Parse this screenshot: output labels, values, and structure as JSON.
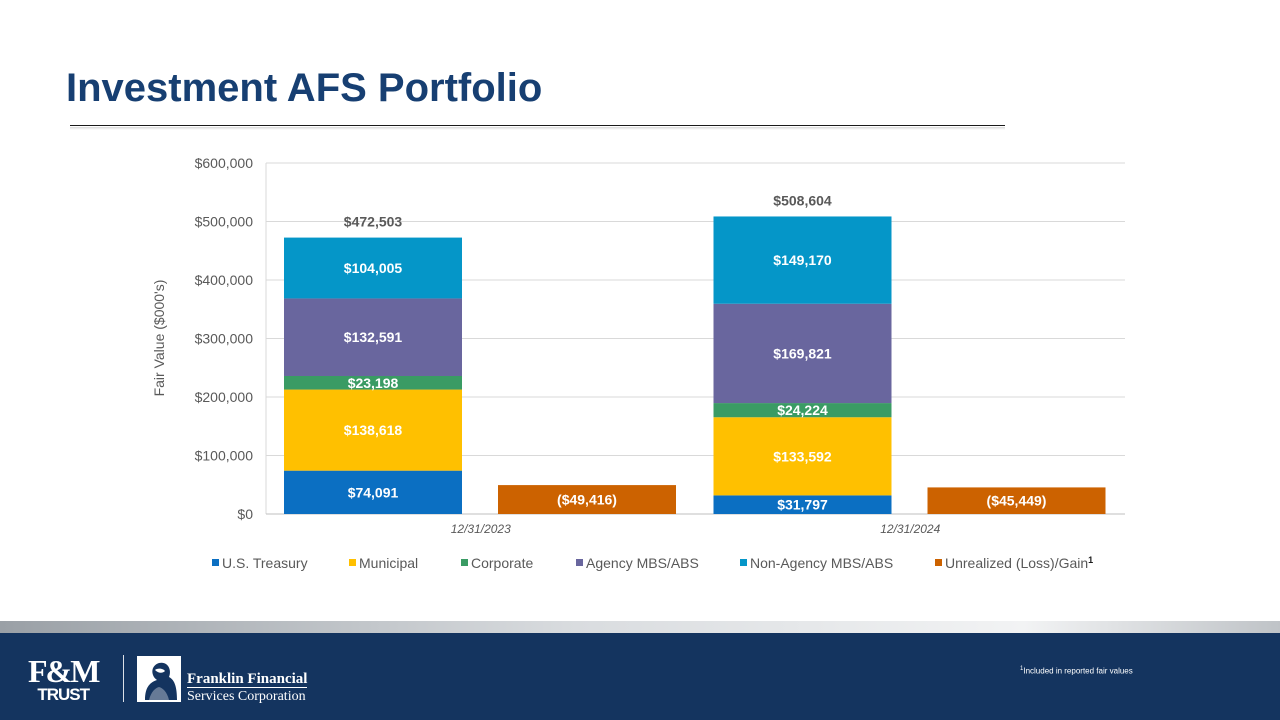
{
  "page": {
    "title": "Investment AFS Portfolio",
    "footnote_marker": "1",
    "footnote_text": "Included in reported fair values"
  },
  "logos": {
    "fm_mark": "F&M",
    "fm_sub": "TRUST",
    "ffsc_line1": "Franklin Financial",
    "ffsc_line2": "Services Corporation"
  },
  "colors": {
    "title": "#173f72",
    "footer": "#14345f",
    "us_treasury": "#0b6fc2",
    "municipal": "#ffc000",
    "corporate": "#3a9b64",
    "agency": "#69669e",
    "non_agency": "#0596c8",
    "unrealized": "#cc6200",
    "grid": "#d9d9d9",
    "axis_text": "#595959"
  },
  "chart_data": {
    "type": "bar",
    "stacked": true,
    "title": "",
    "xlabel": "",
    "ylabel": "Fair Value ($000's)",
    "ylim": [
      0,
      600000
    ],
    "yticks": [
      0,
      100000,
      200000,
      300000,
      400000,
      500000,
      600000
    ],
    "ytick_labels": [
      "$0",
      "$100,000",
      "$200,000",
      "$300,000",
      "$400,000",
      "$500,000",
      "$600,000"
    ],
    "categories": [
      "12/31/2023",
      "12/31/2024"
    ],
    "grid": true,
    "legend_position": "bottom",
    "series": [
      {
        "name": "U.S. Treasury",
        "color_key": "us_treasury",
        "stack": "portfolio",
        "values": [
          74091,
          31797
        ],
        "labels": [
          "$74,091",
          "$31,797"
        ]
      },
      {
        "name": "Municipal",
        "color_key": "municipal",
        "stack": "portfolio",
        "values": [
          138618,
          133592
        ],
        "labels": [
          "$138,618",
          "$133,592"
        ]
      },
      {
        "name": "Corporate",
        "color_key": "corporate",
        "stack": "portfolio",
        "values": [
          23198,
          24224
        ],
        "labels": [
          "$23,198",
          "$24,224"
        ]
      },
      {
        "name": "Agency MBS/ABS",
        "color_key": "agency",
        "stack": "portfolio",
        "values": [
          132591,
          169821
        ],
        "labels": [
          "$132,591",
          "$169,821"
        ]
      },
      {
        "name": "Non-Agency MBS/ABS",
        "color_key": "non_agency",
        "stack": "portfolio",
        "values": [
          104005,
          149170
        ],
        "labels": [
          "$104,005",
          "$149,170"
        ]
      },
      {
        "name": "Unrealized (Loss)/Gain",
        "legend_sup": "1",
        "color_key": "unrealized",
        "stack": "unrealized",
        "values": [
          -49416,
          -45449
        ],
        "plotted_magnitude": true,
        "labels": [
          "($49,416)",
          "($45,449)"
        ]
      }
    ],
    "totals": [
      472503,
      508604
    ],
    "total_labels": [
      "$472,503",
      "$508,604"
    ]
  }
}
